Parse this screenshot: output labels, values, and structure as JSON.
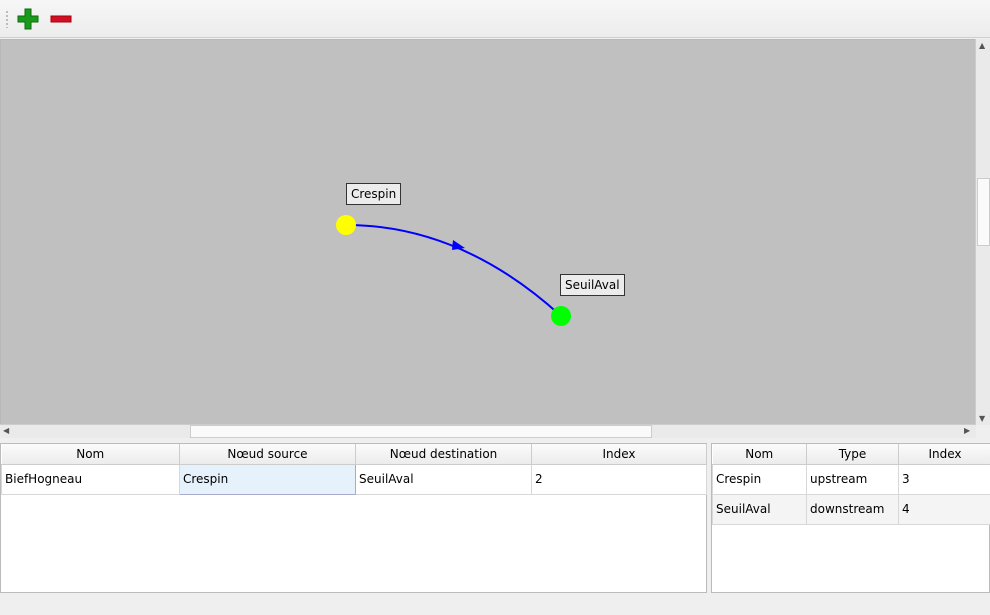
{
  "toolbar": {
    "add_icon": "plus-icon",
    "remove_icon": "minus-icon",
    "add_color": "#1a9a1a",
    "remove_color": "#d0102a"
  },
  "graph": {
    "background": "#c0c0c0",
    "nodes": [
      {
        "name": "Crespin",
        "color": "#ffff00"
      },
      {
        "name": "SeuilAval",
        "color": "#00ff00"
      }
    ],
    "edge_color": "#0000ff"
  },
  "reaches": {
    "headers": [
      "Nom",
      "Nœud source",
      "Nœud destination",
      "Index"
    ],
    "rows": [
      [
        "BiefHogneau",
        "Crespin",
        "SeuilAval",
        "2"
      ]
    ]
  },
  "nodes_table": {
    "headers": [
      "Nom",
      "Type",
      "Index"
    ],
    "rows": [
      [
        "Crespin",
        "upstream",
        "3"
      ],
      [
        "SeuilAval",
        "downstream",
        "4"
      ]
    ]
  }
}
